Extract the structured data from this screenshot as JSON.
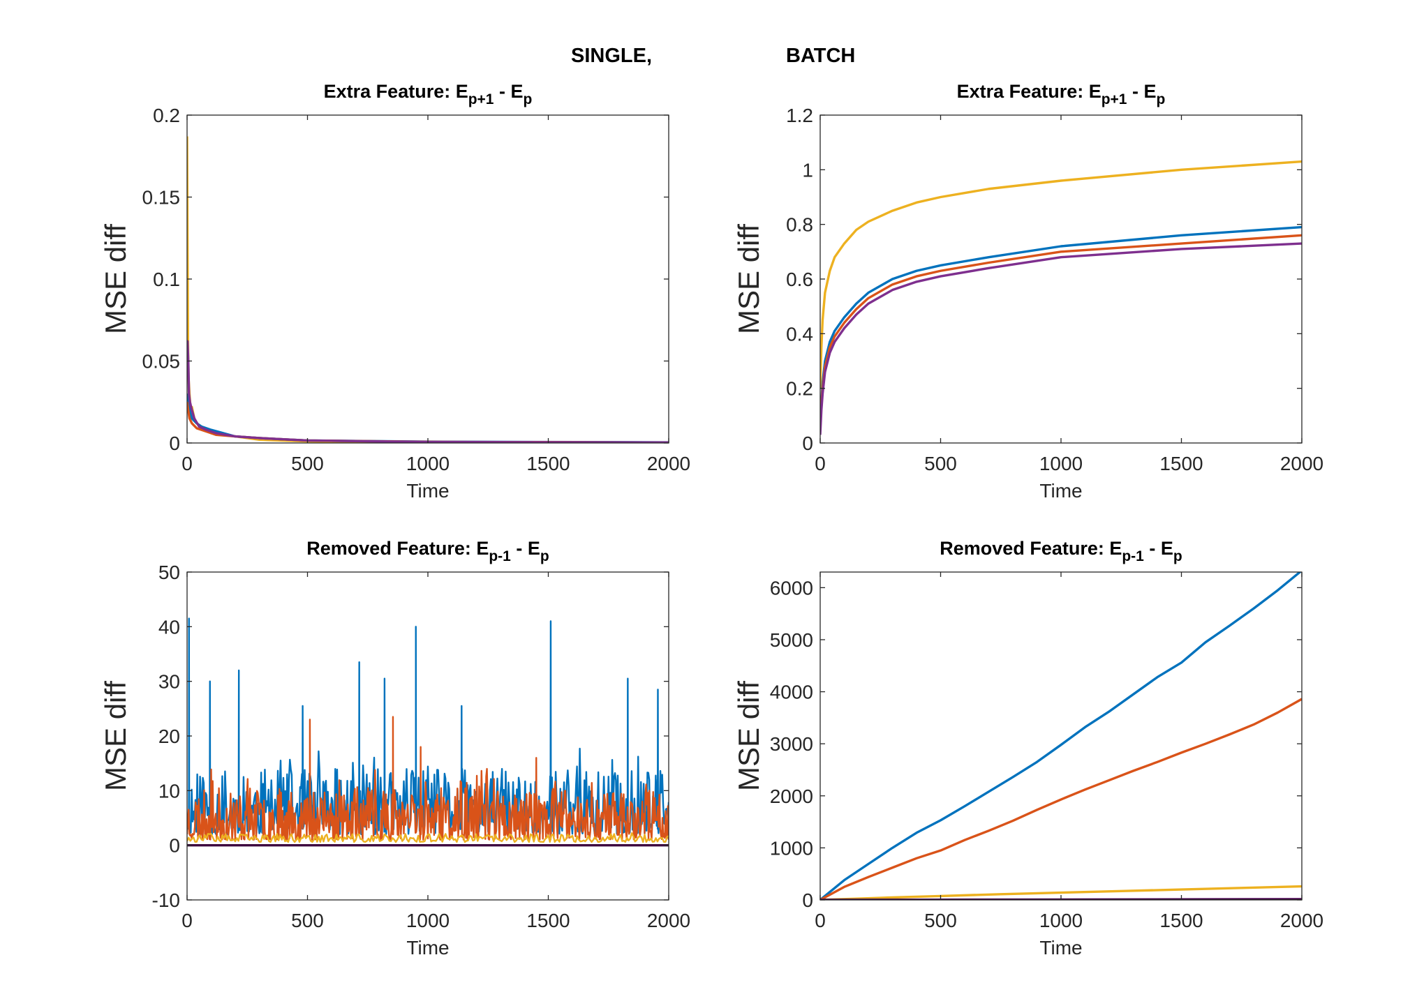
{
  "figure": {
    "suptitle_left": "SINGLE,",
    "suptitle_right": "BATCH"
  },
  "colors": {
    "blue": "#0072BD",
    "orange": "#D95319",
    "yellow": "#EDB120",
    "purple": "#7E2F8E",
    "darkpurple": "#3D0A3F"
  },
  "chart_data": [
    {
      "id": "single-extra",
      "type": "line",
      "title": {
        "base1": "Extra Feature: E",
        "sub1": "p+1",
        "mid": " - E",
        "sub2": "p"
      },
      "xlabel": "Time",
      "ylabel": "MSE diff",
      "xlim": [
        0,
        2000
      ],
      "ylim": [
        0,
        0.2
      ],
      "xticks": [
        0,
        500,
        1000,
        1500,
        2000
      ],
      "xtick_labels": [
        "0",
        "500",
        "1000",
        "1500",
        "2000"
      ],
      "yticks": [
        0,
        0.05,
        0.1,
        0.15,
        0.2
      ],
      "ytick_labels": [
        "0",
        "0.05",
        "0.1",
        "0.15",
        "0.2"
      ],
      "series": [
        {
          "color": "#EDB120",
          "x": [
            0,
            2,
            4,
            6,
            10,
            15,
            20,
            30,
            40,
            60,
            80,
            100,
            150,
            200,
            300,
            500,
            1000,
            2000
          ],
          "y": [
            0.187,
            0.12,
            0.06,
            0.04,
            0.03,
            0.02,
            0.022,
            0.015,
            0.012,
            0.01,
            0.008,
            0.006,
            0.005,
            0.004,
            0.002,
            0.001,
            0.0005,
            0.0003
          ]
        },
        {
          "color": "#0072BD",
          "x": [
            0,
            5,
            10,
            20,
            40,
            60,
            100,
            150,
            200,
            300,
            500,
            1000,
            2000
          ],
          "y": [
            0.03,
            0.028,
            0.02,
            0.015,
            0.012,
            0.01,
            0.008,
            0.006,
            0.004,
            0.003,
            0.0015,
            0.0008,
            0.0004
          ]
        },
        {
          "color": "#D95319",
          "x": [
            0,
            5,
            10,
            20,
            40,
            80,
            120,
            200,
            300,
            500,
            1000,
            2000
          ],
          "y": [
            0.025,
            0.02,
            0.015,
            0.012,
            0.009,
            0.007,
            0.005,
            0.004,
            0.003,
            0.0015,
            0.0007,
            0.0003
          ]
        },
        {
          "color": "#7E2F8E",
          "x": [
            0,
            2,
            5,
            8,
            12,
            20,
            30,
            50,
            80,
            120,
            200,
            300,
            500,
            1000,
            2000
          ],
          "y": [
            0.06,
            0.062,
            0.05,
            0.03,
            0.025,
            0.02,
            0.015,
            0.01,
            0.008,
            0.006,
            0.004,
            0.003,
            0.0015,
            0.0006,
            0.0003
          ]
        }
      ]
    },
    {
      "id": "batch-extra",
      "type": "line",
      "title": {
        "base1": "Extra Feature: E",
        "sub1": "p+1",
        "mid": " - E",
        "sub2": "p"
      },
      "xlabel": "Time",
      "ylabel": "MSE diff",
      "xlim": [
        0,
        2000
      ],
      "ylim": [
        0,
        1.2
      ],
      "xticks": [
        0,
        500,
        1000,
        1500,
        2000
      ],
      "xtick_labels": [
        "0",
        "500",
        "1000",
        "1500",
        "2000"
      ],
      "yticks": [
        0,
        0.2,
        0.4,
        0.6,
        0.8,
        1,
        1.2
      ],
      "ytick_labels": [
        "0",
        "0.2",
        "0.4",
        "0.6",
        "0.8",
        "1",
        "1.2"
      ],
      "series": [
        {
          "color": "#EDB120",
          "x": [
            0,
            5,
            10,
            20,
            40,
            60,
            100,
            150,
            200,
            300,
            400,
            500,
            700,
            1000,
            1500,
            2000
          ],
          "y": [
            0.2,
            0.35,
            0.45,
            0.55,
            0.63,
            0.68,
            0.73,
            0.78,
            0.81,
            0.85,
            0.88,
            0.9,
            0.93,
            0.96,
            1.0,
            1.03
          ]
        },
        {
          "color": "#0072BD",
          "x": [
            0,
            5,
            10,
            20,
            40,
            60,
            100,
            150,
            200,
            300,
            400,
            500,
            700,
            1000,
            1500,
            2000
          ],
          "y": [
            0.05,
            0.15,
            0.22,
            0.3,
            0.37,
            0.41,
            0.46,
            0.51,
            0.55,
            0.6,
            0.63,
            0.65,
            0.68,
            0.72,
            0.76,
            0.79
          ]
        },
        {
          "color": "#D95319",
          "x": [
            0,
            5,
            10,
            20,
            40,
            60,
            100,
            150,
            200,
            300,
            400,
            500,
            700,
            1000,
            1500,
            2000
          ],
          "y": [
            0.05,
            0.14,
            0.2,
            0.28,
            0.35,
            0.39,
            0.44,
            0.49,
            0.53,
            0.58,
            0.61,
            0.63,
            0.66,
            0.7,
            0.73,
            0.76
          ]
        },
        {
          "color": "#7E2F8E",
          "x": [
            0,
            5,
            10,
            20,
            40,
            60,
            100,
            150,
            200,
            300,
            400,
            500,
            700,
            1000,
            1500,
            2000
          ],
          "y": [
            0.03,
            0.12,
            0.18,
            0.26,
            0.33,
            0.37,
            0.42,
            0.47,
            0.51,
            0.56,
            0.59,
            0.61,
            0.64,
            0.68,
            0.71,
            0.73
          ]
        }
      ]
    },
    {
      "id": "single-removed",
      "type": "line",
      "title": {
        "base1": "Removed Feature: E",
        "sub1": "p-1",
        "mid": " - E",
        "sub2": "p"
      },
      "xlabel": "Time",
      "ylabel": "MSE diff",
      "xlim": [
        0,
        2000
      ],
      "ylim": [
        -10,
        50
      ],
      "xticks": [
        0,
        500,
        1000,
        1500,
        2000
      ],
      "xtick_labels": [
        "0",
        "500",
        "1000",
        "1500",
        "2000"
      ],
      "yticks": [
        -10,
        0,
        10,
        20,
        30,
        40,
        50
      ],
      "ytick_labels": [
        "-10",
        "0",
        "10",
        "20",
        "30",
        "40",
        "50"
      ],
      "noise_series": [
        {
          "color": "#0072BD",
          "n": 520,
          "base": 2,
          "amp": 12,
          "seed": 11,
          "spikes": [
            [
              8,
              41.5
            ],
            [
              95,
              30
            ],
            [
              215,
              32
            ],
            [
              480,
              25.5
            ],
            [
              715,
              33.5
            ],
            [
              820,
              30.5
            ],
            [
              950,
              40
            ],
            [
              1140,
              25.5
            ],
            [
              1510,
              41
            ],
            [
              1830,
              30.5
            ],
            [
              1955,
              28.5
            ]
          ]
        },
        {
          "color": "#D95319",
          "n": 620,
          "base": 1,
          "amp": 9.5,
          "seed": 23,
          "spikes": [
            [
              510,
              23
            ],
            [
              855,
              23.5
            ],
            [
              970,
              18
            ],
            [
              1450,
              16
            ]
          ]
        },
        {
          "color": "#EDB120",
          "n": 300,
          "base": 0.6,
          "amp": 1.5,
          "seed": 37,
          "spikes": []
        },
        {
          "color": "#3D0A3F",
          "n": 2,
          "base": 0,
          "amp": 0,
          "seed": 41,
          "spikes": []
        }
      ]
    },
    {
      "id": "batch-removed",
      "type": "line",
      "title": {
        "base1": "Removed Feature: E",
        "sub1": "p-1",
        "mid": " - E",
        "sub2": "p"
      },
      "xlabel": "Time",
      "ylabel": "MSE diff",
      "xlim": [
        0,
        2000
      ],
      "ylim": [
        0,
        6300
      ],
      "xticks": [
        0,
        500,
        1000,
        1500,
        2000
      ],
      "xtick_labels": [
        "0",
        "500",
        "1000",
        "1500",
        "2000"
      ],
      "yticks": [
        0,
        1000,
        2000,
        3000,
        4000,
        5000,
        6000
      ],
      "ytick_labels": [
        "0",
        "1000",
        "2000",
        "3000",
        "4000",
        "5000",
        "6000"
      ],
      "series": [
        {
          "color": "#0072BD",
          "x": [
            0,
            100,
            200,
            300,
            400,
            500,
            600,
            700,
            800,
            900,
            1000,
            1100,
            1200,
            1300,
            1400,
            1500,
            1600,
            1700,
            1800,
            1900,
            2000
          ],
          "y": [
            0,
            380,
            690,
            1000,
            1290,
            1530,
            1800,
            2080,
            2360,
            2650,
            2980,
            3320,
            3620,
            3950,
            4280,
            4560,
            4950,
            5270,
            5600,
            5950,
            6330
          ]
        },
        {
          "color": "#D95319",
          "x": [
            0,
            100,
            200,
            300,
            400,
            500,
            600,
            700,
            800,
            900,
            1000,
            1100,
            1200,
            1300,
            1400,
            1500,
            1600,
            1700,
            1800,
            1900,
            2000
          ],
          "y": [
            0,
            250,
            440,
            620,
            800,
            950,
            1150,
            1330,
            1520,
            1730,
            1930,
            2120,
            2300,
            2480,
            2650,
            2830,
            3000,
            3180,
            3370,
            3600,
            3860
          ]
        },
        {
          "color": "#EDB120",
          "x": [
            0,
            250,
            500,
            750,
            1000,
            1250,
            1500,
            1750,
            2000
          ],
          "y": [
            0,
            40,
            75,
            110,
            140,
            170,
            200,
            230,
            260
          ]
        },
        {
          "color": "#7E2F8E",
          "x": [
            0,
            1000,
            2000
          ],
          "y": [
            0,
            8,
            15
          ]
        },
        {
          "color": "#3D0A3F",
          "x": [
            0,
            1000,
            2000
          ],
          "y": [
            0,
            4,
            8
          ]
        }
      ]
    }
  ]
}
